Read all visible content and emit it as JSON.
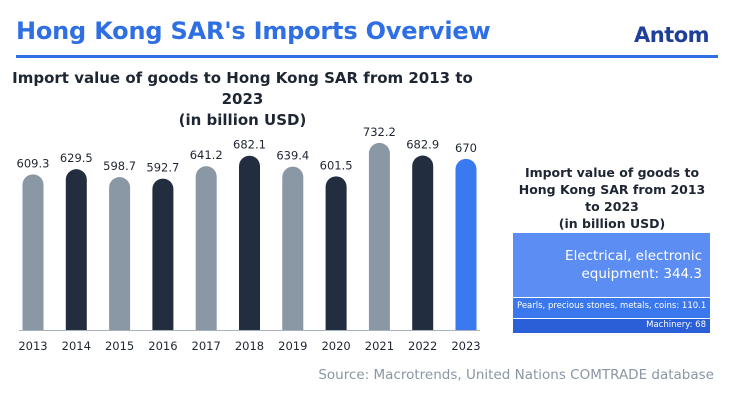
{
  "header": {
    "title": "Hong Kong SAR's Imports Overview",
    "logo_text": "Antom"
  },
  "chart_data": [
    {
      "type": "bar",
      "title": "Import value of goods to Hong Kong SAR from 2013 to 2023",
      "subtitle": "(in billion USD)",
      "xlabel": "",
      "ylabel": "",
      "ylim": [
        0,
        760
      ],
      "grid": false,
      "categories": [
        "2013",
        "2014",
        "2015",
        "2016",
        "2017",
        "2018",
        "2019",
        "2020",
        "2021",
        "2022",
        "2023"
      ],
      "values": [
        609.3,
        629.5,
        598.7,
        592.7,
        641.2,
        682.1,
        639.4,
        601.5,
        732.2,
        682.9,
        670
      ],
      "value_labels": [
        "609.3",
        "629.5",
        "598.7",
        "592.7",
        "641.2",
        "682.1",
        "639.4",
        "601.5",
        "732.2",
        "682.9",
        "670"
      ],
      "bar_colors": [
        "#8a97a4",
        "#222d40",
        "#8a97a4",
        "#222d40",
        "#8a97a4",
        "#222d40",
        "#8a97a4",
        "#222d40",
        "#8a97a4",
        "#222d40",
        "#3a7af0"
      ],
      "axis_color": "#a9b3bf"
    },
    {
      "type": "treemap",
      "title": "Import value of goods to Hong Kong SAR from 2013 to 2023",
      "subtitle": "(in billion USD)",
      "items": [
        {
          "label": "Electrical, electronic equipment: 344.3",
          "name": "Electrical, electronic equipment",
          "value": 344.3,
          "color": "#5b8df2"
        },
        {
          "label": "Pearls, precious stones, metals, coins: 110.1",
          "name": "Pearls, precious stones, metals, coins",
          "value": 110.1,
          "color": "#3b78ee"
        },
        {
          "label": "Machinery: 68",
          "name": "Machinery",
          "value": 68,
          "color": "#2a5fd8"
        }
      ]
    }
  ],
  "footer": {
    "source": "Source: Macrotrends, United Nations COMTRADE database"
  },
  "colors": {
    "accent": "#2f6fe4",
    "logo": "#1f3f9a"
  }
}
